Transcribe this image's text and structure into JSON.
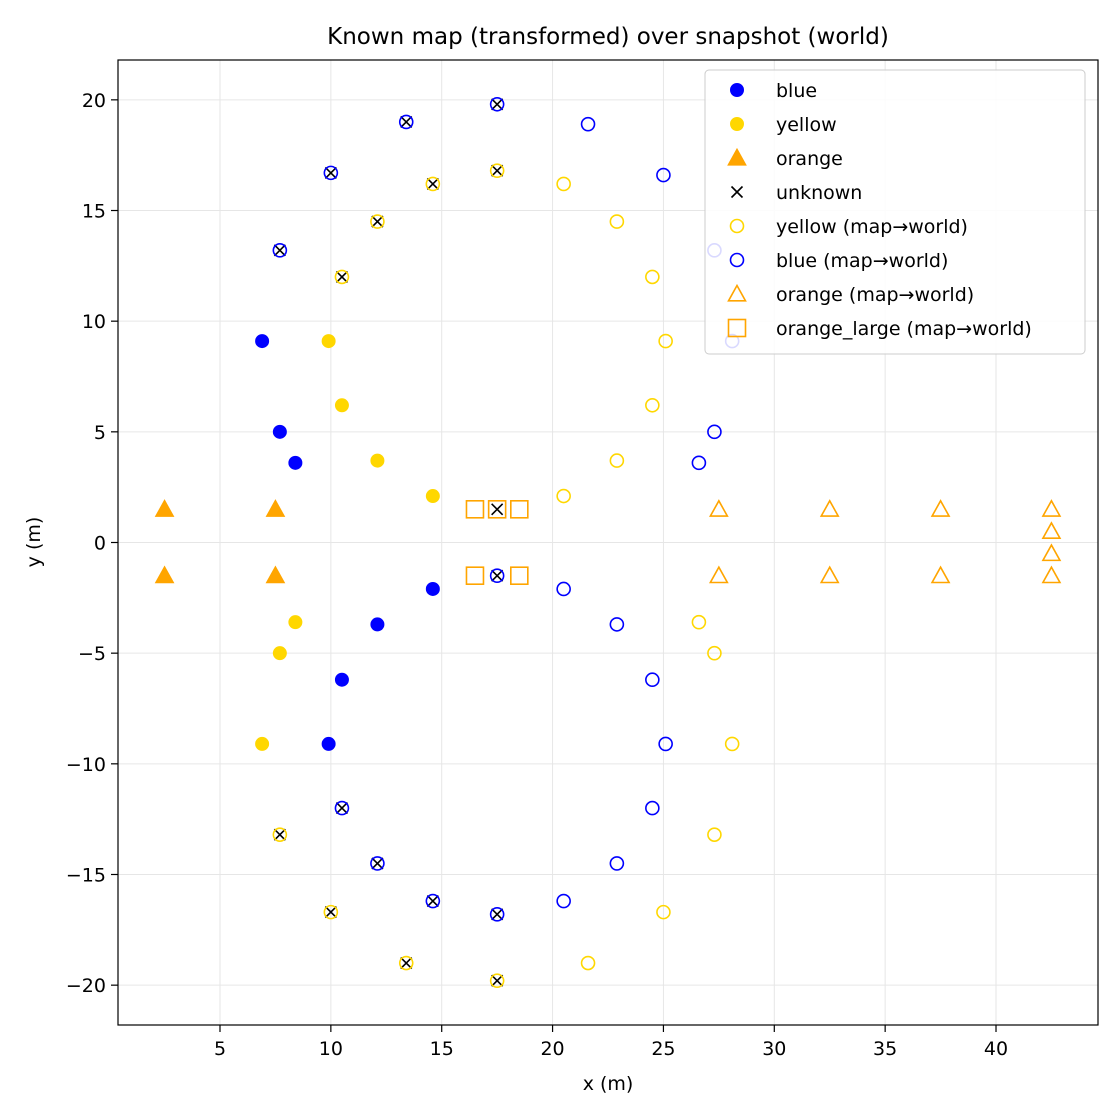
{
  "chart_data": {
    "type": "scatter",
    "title": "Known map (transformed) over snapshot (world)",
    "xlabel": "x (m)",
    "ylabel": "y (m)",
    "xlim": [
      0.4,
      44.6
    ],
    "ylim": [
      -21.8,
      21.8
    ],
    "x_ticks": [
      5,
      10,
      15,
      20,
      25,
      30,
      35,
      40
    ],
    "y_ticks": [
      -20,
      -15,
      -10,
      -5,
      0,
      5,
      10,
      15,
      20
    ],
    "x_tick_labels": [
      "5",
      "10",
      "15",
      "20",
      "25",
      "30",
      "35",
      "40"
    ],
    "y_tick_labels": [
      "−20",
      "−15",
      "−10",
      "−5",
      "0",
      "5",
      "10",
      "15",
      "20"
    ],
    "grid": true,
    "legend_position": "top-right",
    "series": [
      {
        "name": "blue",
        "marker": "circle-filled",
        "color": "#0000ff",
        "points": [
          [
            6.9,
            9.1
          ],
          [
            7.7,
            5.0
          ],
          [
            8.4,
            3.6
          ],
          [
            14.6,
            -2.1
          ],
          [
            12.1,
            -3.7
          ],
          [
            10.5,
            -6.2
          ],
          [
            9.9,
            -9.1
          ]
        ]
      },
      {
        "name": "yellow",
        "marker": "circle-filled",
        "color": "#ffd700",
        "points": [
          [
            9.9,
            9.1
          ],
          [
            10.5,
            6.2
          ],
          [
            12.1,
            3.7
          ],
          [
            14.6,
            2.1
          ],
          [
            8.4,
            -3.6
          ],
          [
            7.7,
            -5.0
          ],
          [
            6.9,
            -9.1
          ]
        ]
      },
      {
        "name": "orange",
        "marker": "triangle-filled",
        "color": "#ffa500",
        "points": [
          [
            2.5,
            1.5
          ],
          [
            7.5,
            1.5
          ],
          [
            2.5,
            -1.5
          ],
          [
            7.5,
            -1.5
          ]
        ]
      },
      {
        "name": "unknown",
        "marker": "x",
        "color": "#000000",
        "points": [
          [
            17.5,
            19.8
          ],
          [
            13.4,
            19.0
          ],
          [
            10.0,
            16.7
          ],
          [
            7.7,
            13.2
          ],
          [
            14.6,
            16.2
          ],
          [
            17.5,
            16.8
          ],
          [
            12.1,
            14.5
          ],
          [
            10.5,
            12.0
          ],
          [
            17.5,
            1.5
          ],
          [
            17.5,
            -1.5
          ],
          [
            10.5,
            -12.0
          ],
          [
            12.1,
            -14.5
          ],
          [
            14.6,
            -16.2
          ],
          [
            17.5,
            -16.8
          ],
          [
            7.7,
            -13.2
          ],
          [
            10.0,
            -16.7
          ],
          [
            13.4,
            -19.0
          ],
          [
            17.5,
            -19.8
          ]
        ]
      },
      {
        "name": "yellow (map→world)",
        "marker": "circle-open",
        "color": "#ffd700",
        "points": [
          [
            14.6,
            16.2
          ],
          [
            17.5,
            16.8
          ],
          [
            12.1,
            14.5
          ],
          [
            10.5,
            12.0
          ],
          [
            20.5,
            16.2
          ],
          [
            22.9,
            14.5
          ],
          [
            24.5,
            12.0
          ],
          [
            25.1,
            9.1
          ],
          [
            24.5,
            6.2
          ],
          [
            22.9,
            3.7
          ],
          [
            20.5,
            2.1
          ],
          [
            26.6,
            -3.6
          ],
          [
            27.3,
            -5.0
          ],
          [
            28.1,
            -9.1
          ],
          [
            27.3,
            -13.2
          ],
          [
            25.0,
            -16.7
          ],
          [
            21.6,
            -19.0
          ],
          [
            7.7,
            -13.2
          ],
          [
            10.0,
            -16.7
          ],
          [
            13.4,
            -19.0
          ],
          [
            17.5,
            -19.8
          ]
        ]
      },
      {
        "name": "blue (map→world)",
        "marker": "circle-open",
        "color": "#0000ff",
        "points": [
          [
            17.5,
            19.8
          ],
          [
            13.4,
            19.0
          ],
          [
            10.0,
            16.7
          ],
          [
            7.7,
            13.2
          ],
          [
            21.6,
            18.9
          ],
          [
            25.0,
            16.6
          ],
          [
            27.3,
            13.2
          ],
          [
            28.1,
            9.1
          ],
          [
            27.3,
            5.0
          ],
          [
            26.6,
            3.6
          ],
          [
            20.5,
            -2.1
          ],
          [
            22.9,
            -3.7
          ],
          [
            24.5,
            -6.2
          ],
          [
            25.1,
            -9.1
          ],
          [
            24.5,
            -12.0
          ],
          [
            22.9,
            -14.5
          ],
          [
            20.5,
            -16.2
          ],
          [
            17.5,
            -1.5
          ],
          [
            10.5,
            -12.0
          ],
          [
            12.1,
            -14.5
          ],
          [
            14.6,
            -16.2
          ],
          [
            17.5,
            -16.8
          ]
        ]
      },
      {
        "name": "orange (map→world)",
        "marker": "triangle-open",
        "color": "#ffa500",
        "points": [
          [
            27.5,
            1.5
          ],
          [
            32.5,
            1.5
          ],
          [
            37.5,
            1.5
          ],
          [
            42.5,
            1.5
          ],
          [
            42.5,
            0.5
          ],
          [
            42.5,
            -0.5
          ],
          [
            27.5,
            -1.5
          ],
          [
            32.5,
            -1.5
          ],
          [
            37.5,
            -1.5
          ],
          [
            42.5,
            -1.5
          ]
        ]
      },
      {
        "name": "orange_large (map→world)",
        "marker": "square-open",
        "color": "#ffa500",
        "points": [
          [
            16.5,
            1.5
          ],
          [
            18.5,
            1.5
          ],
          [
            16.5,
            -1.5
          ],
          [
            18.5,
            -1.5
          ],
          [
            17.5,
            1.5
          ]
        ]
      }
    ]
  }
}
